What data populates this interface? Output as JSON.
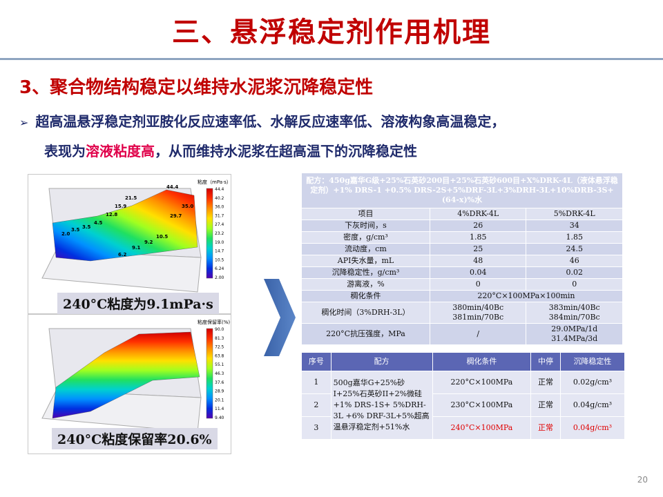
{
  "header": {
    "title": "三、悬浮稳定剂作用机理"
  },
  "section": {
    "heading": "3、聚合物结构稳定以维持水泥浆沉降稳定性",
    "bullet": {
      "line1": "超高温悬浮稳定剂亚胺化反应速率低、水解反应速率低、溶液构象高温稳定，",
      "line2_before": "表现为",
      "highlight": "溶液粘度高",
      "line2_after": "，从而维持水泥浆在超高温下的沉降稳定性"
    }
  },
  "figures": [
    {
      "caption": "240°C粘度为9.1mPa·s",
      "legend_title": "粘度（mPa·s）",
      "legend_ticks": [
        "44.4",
        "40.2",
        "36.0",
        "31.7",
        "27.4",
        "23.2",
        "19.0",
        "14.7",
        "10.5",
        "6.24",
        "2.00"
      ],
      "point_labels": [
        "2.0",
        "3.5",
        "3.5",
        "4.5",
        "12.8",
        "15.9",
        "21.5",
        "44.4",
        "35.0",
        "29.7",
        "10.5",
        "9.2",
        "9.1",
        "6.2"
      ]
    },
    {
      "caption": "240°C粘度保留率20.6%",
      "legend_title": "粘度保留率(%)",
      "legend_ticks": [
        "90.0",
        "81.3",
        "72.5",
        "63.8",
        "55.1",
        "46.3",
        "37.6",
        "28.9",
        "20.1",
        "11.4",
        "9.40"
      ]
    }
  ],
  "table1": {
    "title": "配方：450g嘉华G级+25%石英砂200目+25%石英砂600目+X%DRK-4L（液体悬浮稳定剂）+1% DRS-1 +0.5% DRS-2S+5%DRF-3L+3%DRH-3L+10%DRB-3S+(64-x)%水",
    "rows": [
      [
        "项目",
        "4%DRK-4L",
        "5%DRK-4L"
      ],
      [
        "下灰时间，s",
        "26",
        "34"
      ],
      [
        "密度，g/cm³",
        "1.85",
        "1.85"
      ],
      [
        "流动度，cm",
        "25",
        "24.5"
      ],
      [
        "API失水量，mL",
        "48",
        "46"
      ],
      [
        "沉降稳定性，g/cm³",
        "0.04",
        "0.02"
      ],
      [
        "游离液，%",
        "0",
        "0"
      ],
      [
        "稠化条件",
        "220°C×100MPa×100min"
      ],
      [
        "稠化时间（3%DRH-3L）",
        [
          "380min/40Bc",
          "381min/70Bc"
        ],
        [
          "383min/40Bc",
          "384min/70Bc"
        ]
      ],
      [
        "220°C抗压强度，MPa",
        "/",
        [
          "29.0MPa/1d",
          "31.4MPa/3d"
        ]
      ]
    ]
  },
  "table2": {
    "header": [
      "序号",
      "配方",
      "稠化条件",
      "中停",
      "沉降稳定性"
    ],
    "formula": "500g嘉华G+25%砂I+25%石英砂II+2%微硅+1% DRS-1S+ 5%DRH-3L +6% DRF-3L+5%超高温悬浮稳定剂+51%水",
    "rows": [
      [
        "1",
        "220°C×100MPa",
        "正常",
        "0.02g/cm³"
      ],
      [
        "2",
        "230°C×100MPa",
        "正常",
        "0.04g/cm³"
      ],
      [
        "3",
        "240°C×100MPa",
        "正常",
        "0.04g/cm³"
      ]
    ]
  },
  "page_number": "20"
}
